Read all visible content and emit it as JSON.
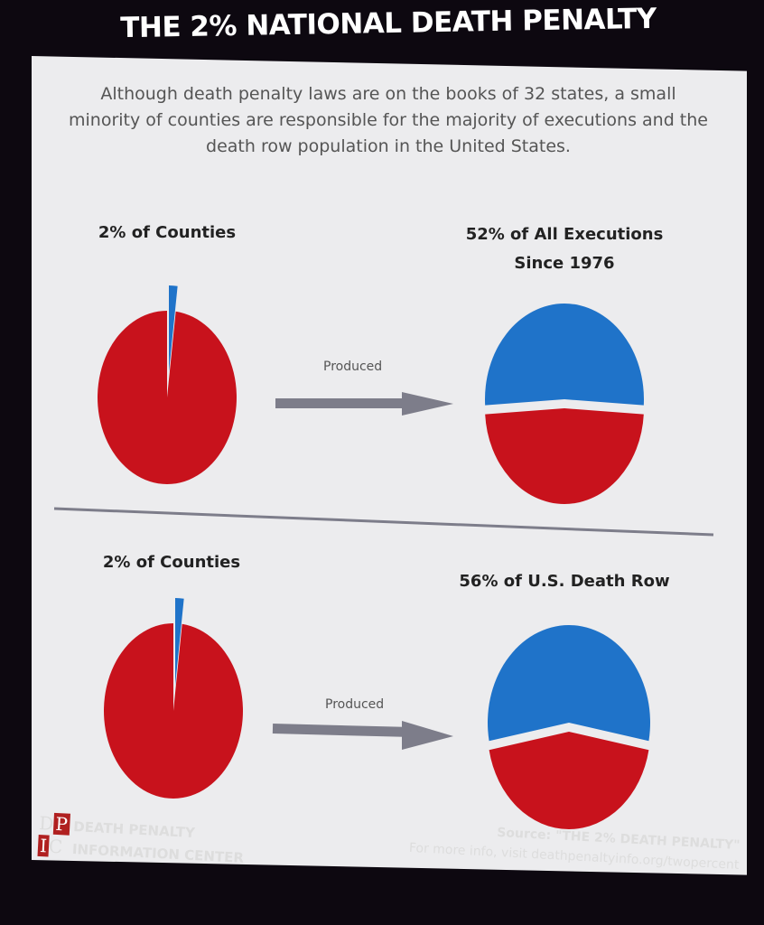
{
  "title": "THE 2% NATIONAL DEATH PENALTY",
  "intro": "Although death penalty laws are on the books of 32 states, a small minority of counties are responsible for the majority of executions and the death row population in the United States.",
  "arrow_label": "Produced",
  "colors": {
    "red": "#c8121c",
    "blue": "#1f73c9",
    "arrow": "#7d7d8a",
    "background": "#ececee"
  },
  "chart_data": [
    {
      "type": "pie",
      "title": "2% of Counties",
      "values": [
        2,
        98
      ],
      "colors": [
        "#1f73c9",
        "#c8121c"
      ]
    },
    {
      "type": "pie",
      "title": "52% of All Executions Since 1976",
      "title_lines": [
        "52% of All Executions",
        "Since 1976"
      ],
      "values": [
        52,
        48
      ],
      "colors": [
        "#1f73c9",
        "#c8121c"
      ],
      "exploded": true
    },
    {
      "type": "pie",
      "title": "2% of Counties",
      "values": [
        2,
        98
      ],
      "colors": [
        "#1f73c9",
        "#c8121c"
      ]
    },
    {
      "type": "pie",
      "title": "56% of U.S. Death Row",
      "values": [
        56,
        44
      ],
      "colors": [
        "#1f73c9",
        "#c8121c"
      ],
      "exploded": true
    }
  ],
  "footer": {
    "logo_letters": [
      "D",
      "P",
      "I",
      "C"
    ],
    "org_line1": "DEATH PENALTY",
    "org_line2": "INFORMATION CENTER",
    "source": "Source: \"THE 2% DEATH PENALTY\"",
    "more_info": "For more info, visit deathpenaltyinfo.org/twopercent"
  }
}
